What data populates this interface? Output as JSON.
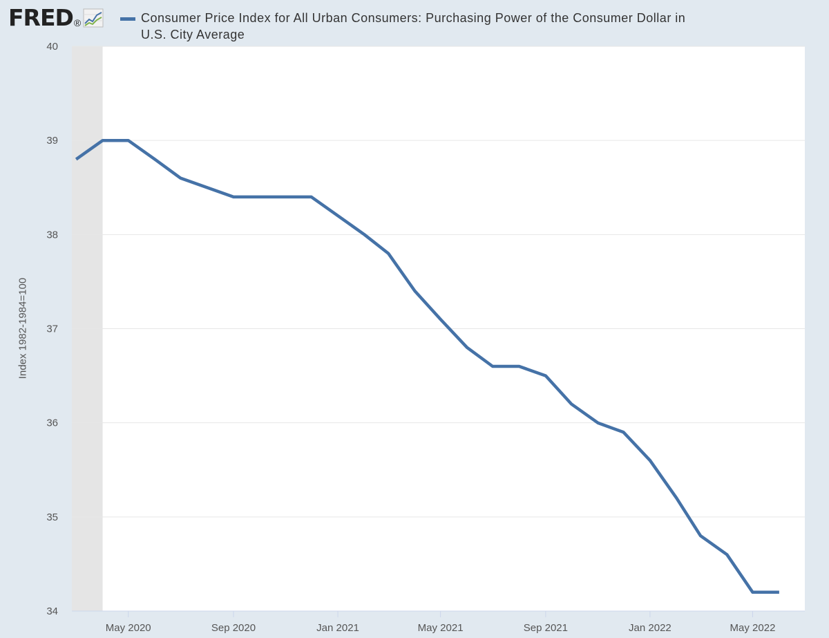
{
  "header": {
    "logo_text": "FRED",
    "logo_mark": "®",
    "logo_icon": "line-chart-icon"
  },
  "colors": {
    "series": "#4572a7",
    "background": "#e1e9f0",
    "plot": "#ffffff",
    "recession": "#e5e5e5",
    "grid": "#e6e6e6"
  },
  "chart_data": {
    "type": "line",
    "title": "",
    "legend_position": "top",
    "xlabel": "",
    "ylabel": "Index 1982-1984=100",
    "ylim": [
      34,
      40
    ],
    "yticks": [
      34,
      35,
      36,
      37,
      38,
      39,
      40
    ],
    "xlim": [
      "2020-02-25",
      "2022-07-01"
    ],
    "xticks": [
      {
        "date": "2020-05-01",
        "label": "May 2020"
      },
      {
        "date": "2020-09-01",
        "label": "Sep 2020"
      },
      {
        "date": "2021-01-01",
        "label": "Jan 2021"
      },
      {
        "date": "2021-05-01",
        "label": "May 2021"
      },
      {
        "date": "2021-09-01",
        "label": "Sep 2021"
      },
      {
        "date": "2022-01-01",
        "label": "Jan 2022"
      },
      {
        "date": "2022-05-01",
        "label": "May 2022"
      }
    ],
    "recession_shading": {
      "start": "2020-02-25",
      "end": "2020-04-01"
    },
    "grid": true,
    "series": [
      {
        "name": "Consumer Price Index for All Urban Consumers: Purchasing Power of the Consumer Dollar in U.S. City Average",
        "color": "#4572a7",
        "x": [
          "2020-03-01",
          "2020-04-01",
          "2020-05-01",
          "2020-06-01",
          "2020-07-01",
          "2020-08-01",
          "2020-09-01",
          "2020-10-01",
          "2020-11-01",
          "2020-12-01",
          "2021-01-01",
          "2021-02-01",
          "2021-03-01",
          "2021-04-01",
          "2021-05-01",
          "2021-06-01",
          "2021-07-01",
          "2021-08-01",
          "2021-09-01",
          "2021-10-01",
          "2021-11-01",
          "2021-12-01",
          "2022-01-01",
          "2022-02-01",
          "2022-03-01",
          "2022-04-01",
          "2022-05-01",
          "2022-06-01"
        ],
        "values": [
          38.8,
          39.0,
          39.0,
          38.8,
          38.6,
          38.5,
          38.4,
          38.4,
          38.4,
          38.4,
          38.2,
          38.0,
          37.8,
          37.4,
          37.1,
          36.8,
          36.6,
          36.6,
          36.5,
          36.2,
          36.0,
          35.9,
          35.6,
          35.2,
          34.8,
          34.6,
          34.2,
          34.2
        ]
      }
    ]
  }
}
